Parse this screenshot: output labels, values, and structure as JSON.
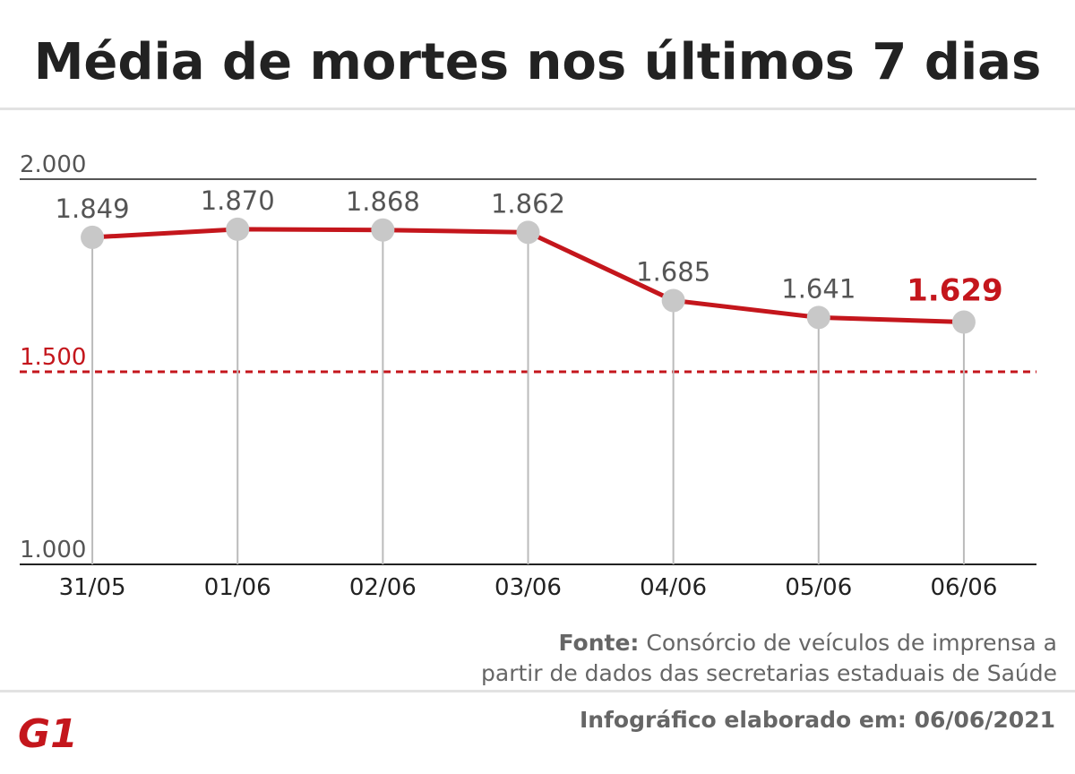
{
  "chart_data": {
    "type": "line",
    "title": "Média de mortes nos últimos 7 dias",
    "categories": [
      "31/05",
      "01/06",
      "02/06",
      "03/06",
      "04/06",
      "05/06",
      "06/06"
    ],
    "values": [
      1849,
      1870,
      1868,
      1862,
      1685,
      1641,
      1629
    ],
    "value_labels": [
      "1.849",
      "1.870",
      "1.868",
      "1.862",
      "1.685",
      "1.641",
      "1.629"
    ],
    "color": "#c4161c",
    "marker_color": "#c8c8c8",
    "label_color": "#555555",
    "highlight_last": true,
    "ylim": [
      1000,
      2000
    ],
    "yticks": [
      {
        "value": 1000,
        "label": "1.000"
      },
      {
        "value": 1500,
        "label": "1.500"
      },
      {
        "value": 2000,
        "label": "2.000"
      }
    ],
    "ytick_colors": [
      "#555555",
      "#c4161c",
      "#555555"
    ],
    "ytick_dashed": [
      false,
      true,
      false
    ],
    "source_label": "Fonte:",
    "source_lines": [
      "Consórcio de veículos de imprensa a",
      "partir de dados das secretarias estaduais de Saúde"
    ],
    "footer": "Infográfico elaborado em: 06/06/2021",
    "logo": "G1"
  }
}
